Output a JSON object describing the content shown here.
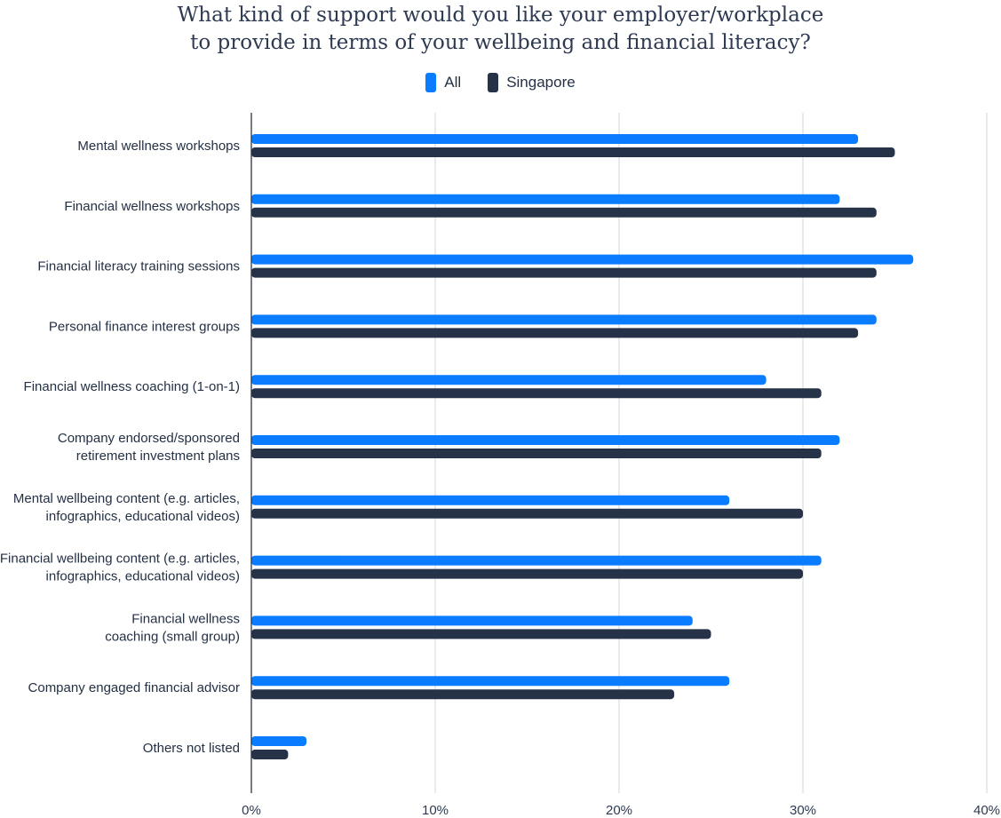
{
  "chart_data": {
    "type": "bar",
    "orientation": "horizontal",
    "title": [
      "What kind of support would you like your employer/workplace",
      "to provide in terms of your wellbeing and financial literacy?"
    ],
    "legend_placement": "top-center",
    "grid": true,
    "xlim": [
      0,
      40
    ],
    "x_ticks": [
      "0%",
      "10%",
      "20%",
      "30%",
      "40%"
    ],
    "categories": [
      [
        "Mental wellness workshops"
      ],
      [
        "Financial wellness workshops"
      ],
      [
        "Financial literacy training sessions"
      ],
      [
        "Personal finance interest groups"
      ],
      [
        "Financial wellness coaching (1-on-1)"
      ],
      [
        "Company endorsed/sponsored",
        "retirement investment plans"
      ],
      [
        "Mental wellbeing content (e.g. articles,",
        "infographics, educational videos)"
      ],
      [
        "Financial wellbeing content (e.g. articles,",
        "infographics, educational videos)"
      ],
      [
        "Financial wellness",
        "coaching (small group)"
      ],
      [
        "Company engaged financial advisor"
      ],
      [
        "Others not listed"
      ]
    ],
    "series": [
      {
        "name": "All",
        "color": "#0a7cff",
        "values": [
          33,
          32,
          36,
          34,
          28,
          32,
          26,
          31,
          24,
          26,
          3
        ]
      },
      {
        "name": "Singapore",
        "color": "#263248",
        "values": [
          35,
          34,
          34,
          33,
          31,
          31,
          30,
          30,
          25,
          23,
          2
        ]
      }
    ]
  }
}
